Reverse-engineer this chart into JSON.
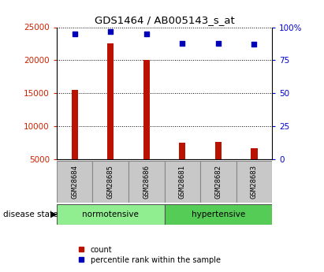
{
  "title": "GDS1464 / AB005143_s_at",
  "samples": [
    "GSM28684",
    "GSM28685",
    "GSM28686",
    "GSM28681",
    "GSM28682",
    "GSM28683"
  ],
  "count_values": [
    15500,
    22500,
    20000,
    7500,
    7600,
    6700
  ],
  "percentile_values": [
    95,
    97,
    95,
    88,
    88,
    87
  ],
  "ylim_left": [
    5000,
    25000
  ],
  "ylim_right": [
    0,
    100
  ],
  "yticks_left": [
    5000,
    10000,
    15000,
    20000,
    25000
  ],
  "yticks_right": [
    0,
    25,
    50,
    75,
    100
  ],
  "ytick_labels_right": [
    "0",
    "25",
    "50",
    "75",
    "100%"
  ],
  "groups": [
    {
      "label": "normotensive",
      "indices": [
        0,
        1,
        2
      ],
      "color": "#90EE90"
    },
    {
      "label": "hypertensive",
      "indices": [
        3,
        4,
        5
      ],
      "color": "#55CC55"
    }
  ],
  "bar_color": "#BB1100",
  "scatter_color": "#0000BB",
  "bar_width": 0.18,
  "grid_color": "#000000",
  "tick_label_color_left": "#CC2200",
  "tick_label_color_right": "#0000CC",
  "disease_state_label": "disease state",
  "legend_count_label": "count",
  "legend_percentile_label": "percentile rank within the sample",
  "xlabel_area_color": "#C8C8C8"
}
